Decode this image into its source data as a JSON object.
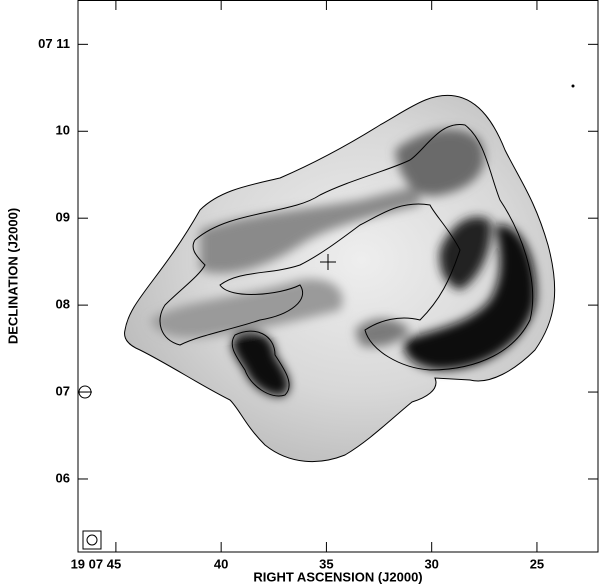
{
  "chart_data": {
    "type": "image",
    "xlabel": "RIGHT ASCENSION (J2000)",
    "ylabel": "DECLINATION (J2000)",
    "xlim": [
      46.8,
      22.1
    ],
    "ylim": [
      5.16,
      11.51
    ],
    "xticks": [
      {
        "value": 45,
        "label": "19 07 45"
      },
      40,
      35,
      30,
      25
    ],
    "yticks": [
      {
        "value": 6,
        "label": "06"
      },
      {
        "value": 7,
        "label": "07"
      },
      {
        "value": 8,
        "label": "08"
      },
      {
        "value": 9,
        "label": "09"
      },
      10,
      {
        "value": 11,
        "label": "07 11"
      }
    ]
  }
}
